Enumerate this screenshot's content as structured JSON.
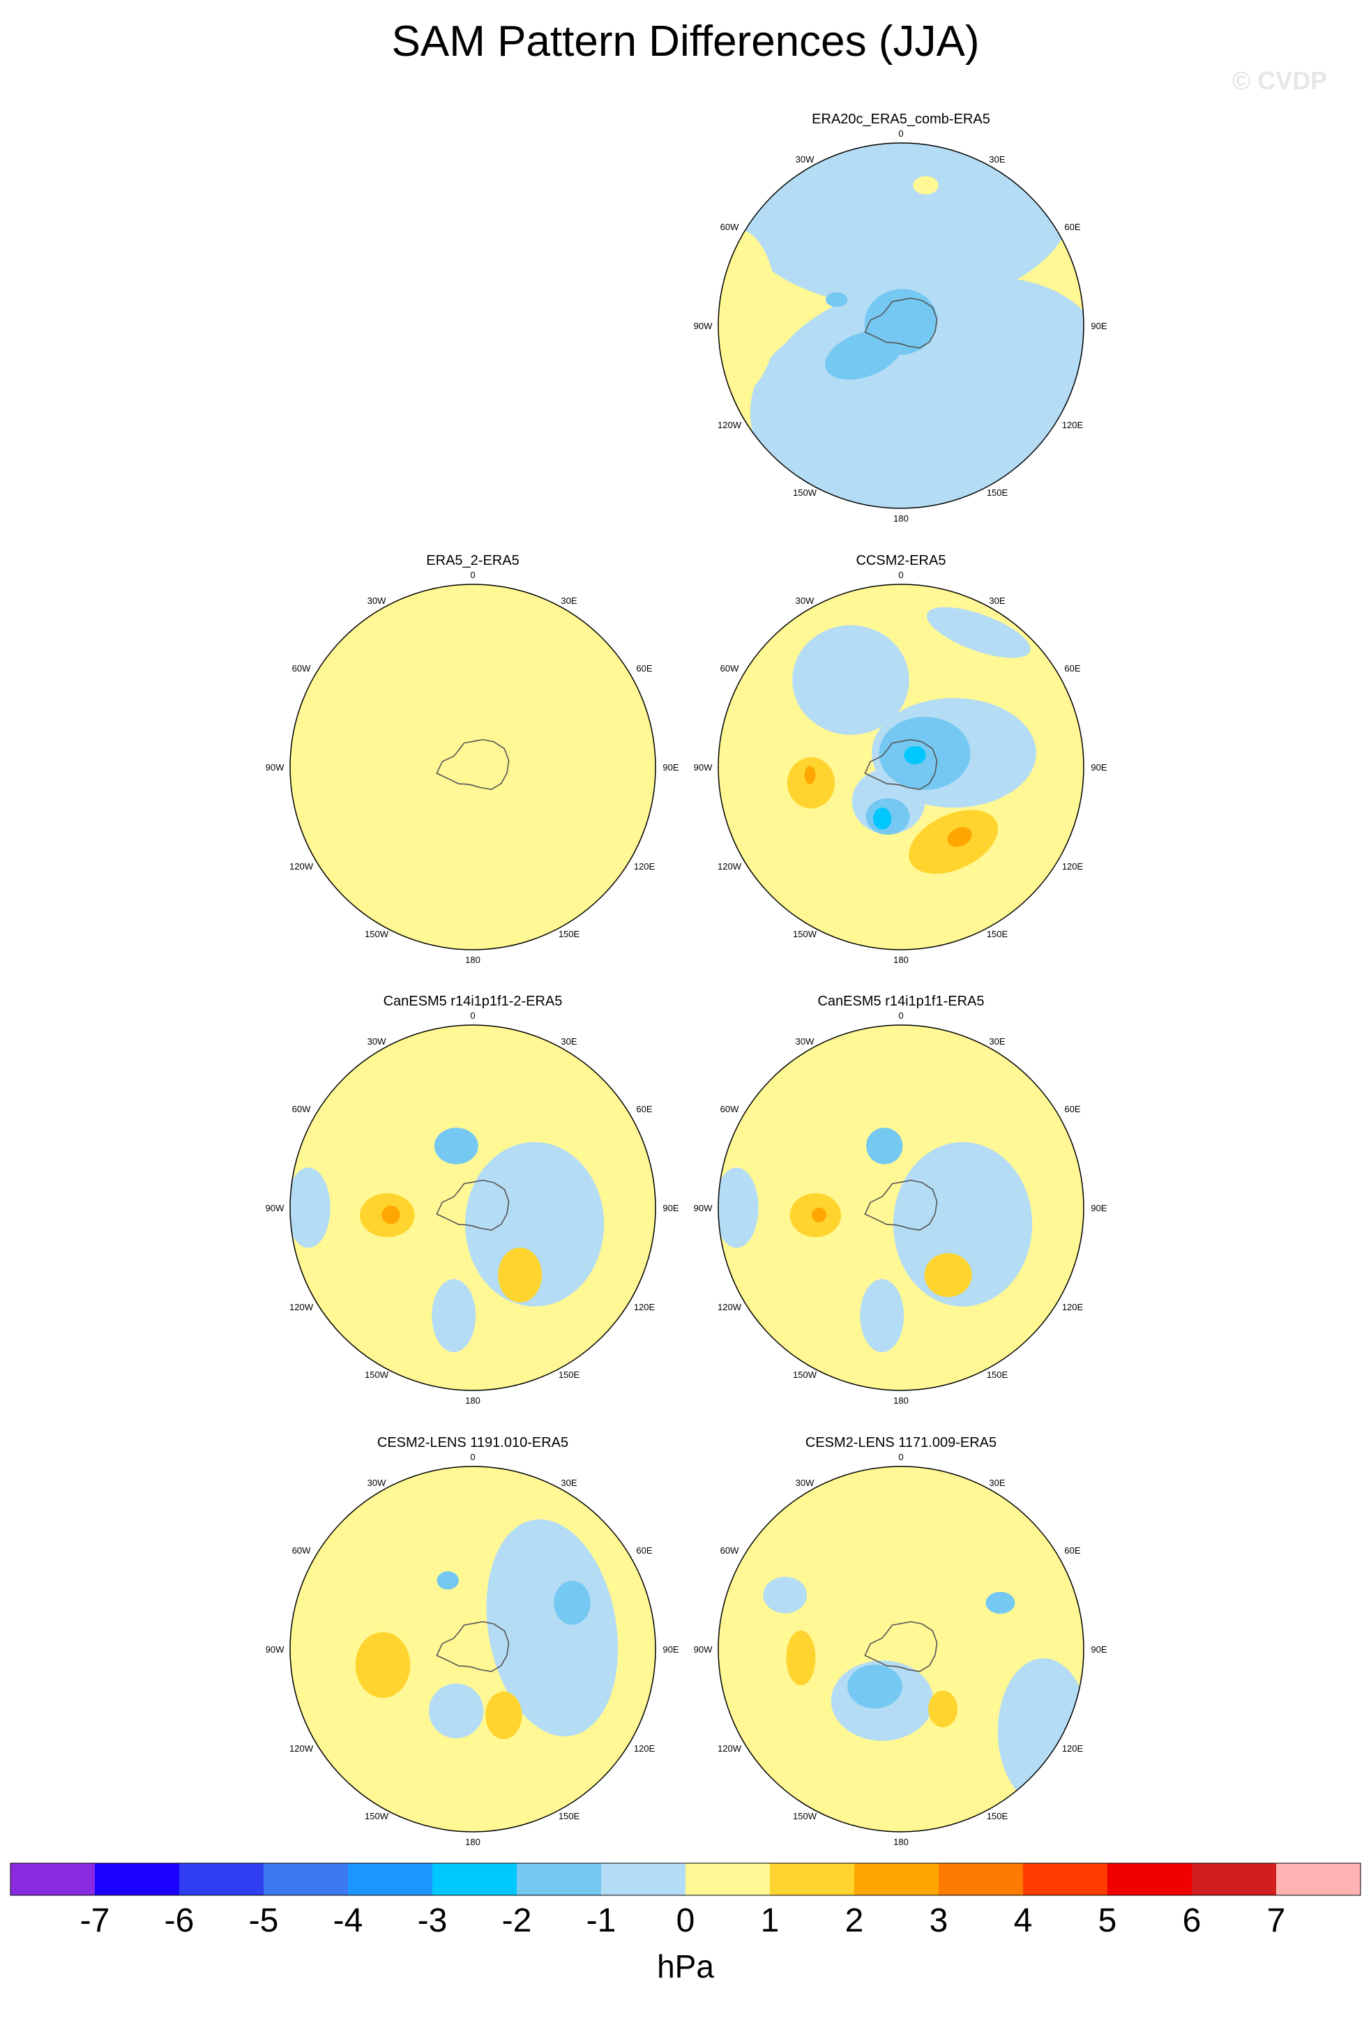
{
  "title": "SAM Pattern Differences (JJA)",
  "watermark": "© CVDP",
  "chart_data": {
    "type": "heatmap",
    "projection": "south polar stereographic",
    "field": "SAM pattern difference (model minus observations)",
    "season": "JJA",
    "longitude_labels": [
      "0",
      "30E",
      "60E",
      "90E",
      "120E",
      "150E",
      "180",
      "150W",
      "120W",
      "90W",
      "60W",
      "30W"
    ],
    "panels": [
      {
        "title": "ERA20c_ERA5_comb-ERA5",
        "background": 0,
        "features": [
          {
            "value": -0.5,
            "lon": 0,
            "r": 0.7,
            "sx": 0.95,
            "sy": 0.6,
            "rot": 0
          },
          {
            "value": -0.5,
            "lon": 160,
            "r": 0.5,
            "sx": 0.95,
            "sy": 0.7,
            "rot": 0
          },
          {
            "value": -0.5,
            "lon": 110,
            "r": 0.55,
            "sx": 0.6,
            "sy": 0.45,
            "rot": 0
          },
          {
            "value": -0.5,
            "lon": 210,
            "r": 0.55,
            "sx": 0.55,
            "sy": 0.5,
            "rot": 0
          },
          {
            "value": -1.5,
            "lon": 0,
            "r": 0.02,
            "sx": 0.2,
            "sy": 0.18,
            "rot": -10
          },
          {
            "value": -1.5,
            "lon": 232,
            "r": 0.26,
            "sx": 0.22,
            "sy": 0.12,
            "rot": -20
          },
          {
            "value": -1.5,
            "lon": 292,
            "r": 0.38,
            "sx": 0.06,
            "sy": 0.04,
            "rot": 0
          },
          {
            "value": 0.5,
            "lon": 10,
            "r": 0.78,
            "sx": 0.07,
            "sy": 0.05,
            "rot": 0
          },
          {
            "value": 0.5,
            "lon": 275,
            "r": 0.9,
            "sx": 0.22,
            "sy": 0.45,
            "rot": 0
          }
        ]
      },
      {
        "title": "ERA5_2-ERA5",
        "background": 0,
        "features": [
          {
            "value": 0.5,
            "lon": 60,
            "r": 0.45,
            "sx": 0.22,
            "sy": 0.35,
            "rot": -30
          },
          {
            "value": 0.5,
            "lon": 5,
            "r": 0.3,
            "sx": 0.3,
            "sy": 0.12,
            "rot": 0
          },
          {
            "value": 0.5,
            "lon": 195,
            "r": 0.45,
            "sx": 0.22,
            "sy": 0.15,
            "rot": 0
          },
          {
            "value": 0.5,
            "lon": 265,
            "r": 0.78,
            "sx": 0.05,
            "sy": 0.1,
            "rot": 0
          },
          {
            "value": 0.5,
            "lon": 170,
            "r": 0.93,
            "sx": 0.15,
            "sy": 0.05,
            "rot": 0
          }
        ]
      },
      {
        "title": "CCSM2-ERA5",
        "background": 0.5,
        "features": [
          {
            "value": -0.5,
            "lon": 330,
            "r": 0.55,
            "sx": 0.32,
            "sy": 0.3,
            "rot": 0
          },
          {
            "value": -0.5,
            "lon": 75,
            "r": 0.3,
            "sx": 0.45,
            "sy": 0.3,
            "rot": 0
          },
          {
            "value": -0.5,
            "lon": 30,
            "r": 0.85,
            "sx": 0.3,
            "sy": 0.1,
            "rot": 20
          },
          {
            "value": -0.5,
            "lon": 200,
            "r": 0.2,
            "sx": 0.2,
            "sy": 0.18,
            "rot": 0
          },
          {
            "value": -1.5,
            "lon": 60,
            "r": 0.15,
            "sx": 0.25,
            "sy": 0.2,
            "rot": 0
          },
          {
            "value": -1.5,
            "lon": 195,
            "r": 0.28,
            "sx": 0.12,
            "sy": 0.1,
            "rot": 0
          },
          {
            "value": -2.5,
            "lon": 50,
            "r": 0.1,
            "sx": 0.06,
            "sy": 0.05,
            "rot": 0
          },
          {
            "value": -2.5,
            "lon": 200,
            "r": 0.3,
            "sx": 0.05,
            "sy": 0.06,
            "rot": 0
          },
          {
            "value": 1.5,
            "lon": 260,
            "r": 0.5,
            "sx": 0.13,
            "sy": 0.14,
            "rot": 0
          },
          {
            "value": 1.5,
            "lon": 145,
            "r": 0.5,
            "sx": 0.26,
            "sy": 0.15,
            "rot": -25
          },
          {
            "value": 2.5,
            "lon": 265,
            "r": 0.5,
            "sx": 0.03,
            "sy": 0.05,
            "rot": 0
          },
          {
            "value": 2.5,
            "lon": 140,
            "r": 0.5,
            "sx": 0.07,
            "sy": 0.05,
            "rot": -25
          }
        ]
      },
      {
        "title": "CanESM5 r14i1p1f1-2-ERA5",
        "background": 0.5,
        "features": [
          {
            "value": -0.5,
            "lon": 105,
            "r": 0.35,
            "sx": 0.38,
            "sy": 0.45,
            "rot": 0
          },
          {
            "value": -0.5,
            "lon": 270,
            "r": 0.9,
            "sx": 0.12,
            "sy": 0.22,
            "rot": 0
          },
          {
            "value": -0.5,
            "lon": 190,
            "r": 0.6,
            "sx": 0.12,
            "sy": 0.2,
            "rot": 0
          },
          {
            "value": -1.5,
            "lon": 345,
            "r": 0.35,
            "sx": 0.12,
            "sy": 0.1,
            "rot": 0
          },
          {
            "value": 1.5,
            "lon": 265,
            "r": 0.47,
            "sx": 0.15,
            "sy": 0.12,
            "rot": 0
          },
          {
            "value": 1.5,
            "lon": 145,
            "r": 0.45,
            "sx": 0.12,
            "sy": 0.15,
            "rot": 0
          },
          {
            "value": 2.5,
            "lon": 265,
            "r": 0.45,
            "sx": 0.05,
            "sy": 0.05,
            "rot": 0
          }
        ]
      },
      {
        "title": "CanESM5 r14i1p1f1-ERA5",
        "background": 0.5,
        "features": [
          {
            "value": -0.5,
            "lon": 105,
            "r": 0.35,
            "sx": 0.38,
            "sy": 0.45,
            "rot": 0
          },
          {
            "value": -0.5,
            "lon": 270,
            "r": 0.9,
            "sx": 0.12,
            "sy": 0.22,
            "rot": 0
          },
          {
            "value": -0.5,
            "lon": 190,
            "r": 0.6,
            "sx": 0.12,
            "sy": 0.2,
            "rot": 0
          },
          {
            "value": -1.5,
            "lon": 345,
            "r": 0.35,
            "sx": 0.1,
            "sy": 0.1,
            "rot": 0
          },
          {
            "value": 1.5,
            "lon": 265,
            "r": 0.47,
            "sx": 0.14,
            "sy": 0.12,
            "rot": 0
          },
          {
            "value": 1.5,
            "lon": 145,
            "r": 0.45,
            "sx": 0.13,
            "sy": 0.12,
            "rot": 0
          },
          {
            "value": 2.5,
            "lon": 265,
            "r": 0.45,
            "sx": 0.04,
            "sy": 0.04,
            "rot": 0
          }
        ]
      },
      {
        "title": "CESM2-LENS 1191.010-ERA5",
        "background": 0.5,
        "features": [
          {
            "value": -0.5,
            "lon": 75,
            "r": 0.45,
            "sx": 0.35,
            "sy": 0.6,
            "rot": -10
          },
          {
            "value": -0.5,
            "lon": 195,
            "r": 0.35,
            "sx": 0.15,
            "sy": 0.15,
            "rot": 0
          },
          {
            "value": -1.5,
            "lon": 65,
            "r": 0.6,
            "sx": 0.1,
            "sy": 0.12,
            "rot": 0
          },
          {
            "value": -1.5,
            "lon": 340,
            "r": 0.4,
            "sx": 0.06,
            "sy": 0.05,
            "rot": 0
          },
          {
            "value": 1.5,
            "lon": 260,
            "r": 0.5,
            "sx": 0.15,
            "sy": 0.18,
            "rot": 0
          },
          {
            "value": 1.5,
            "lon": 155,
            "r": 0.4,
            "sx": 0.1,
            "sy": 0.13,
            "rot": 0
          }
        ]
      },
      {
        "title": "CESM2-LENS 1171.009-ERA5",
        "background": 0.5,
        "features": [
          {
            "value": -0.5,
            "lon": 200,
            "r": 0.3,
            "sx": 0.28,
            "sy": 0.22,
            "rot": 0
          },
          {
            "value": -0.5,
            "lon": 120,
            "r": 0.9,
            "sx": 0.25,
            "sy": 0.4,
            "rot": 0
          },
          {
            "value": -0.5,
            "lon": 295,
            "r": 0.7,
            "sx": 0.12,
            "sy": 0.1,
            "rot": 0
          },
          {
            "value": -1.5,
            "lon": 215,
            "r": 0.25,
            "sx": 0.15,
            "sy": 0.12,
            "rot": 0
          },
          {
            "value": -1.5,
            "lon": 65,
            "r": 0.6,
            "sx": 0.08,
            "sy": 0.06,
            "rot": 0
          },
          {
            "value": 1.5,
            "lon": 265,
            "r": 0.55,
            "sx": 0.08,
            "sy": 0.15,
            "rot": 0
          },
          {
            "value": 1.5,
            "lon": 145,
            "r": 0.4,
            "sx": 0.08,
            "sy": 0.1,
            "rot": 0
          }
        ]
      }
    ],
    "colorbar": {
      "unit": "hPa",
      "tick_labels": [
        "-7",
        "-6",
        "-5",
        "-4",
        "-3",
        "-2",
        "-1",
        "0",
        "1",
        "2",
        "3",
        "4",
        "5",
        "6",
        "7"
      ],
      "colors": [
        "#8a2be2",
        "#1c00ff",
        "#2e3ef0",
        "#3c78f0",
        "#1c96ff",
        "#00c8ff",
        "#74c8f2",
        "#b4dcf4",
        "#fff894",
        "#ffd42e",
        "#ffa600",
        "#ff7a00",
        "#ff3c00",
        "#f00000",
        "#d21e1e",
        "#ffb4b4"
      ],
      "range": [
        -8,
        8
      ]
    }
  }
}
